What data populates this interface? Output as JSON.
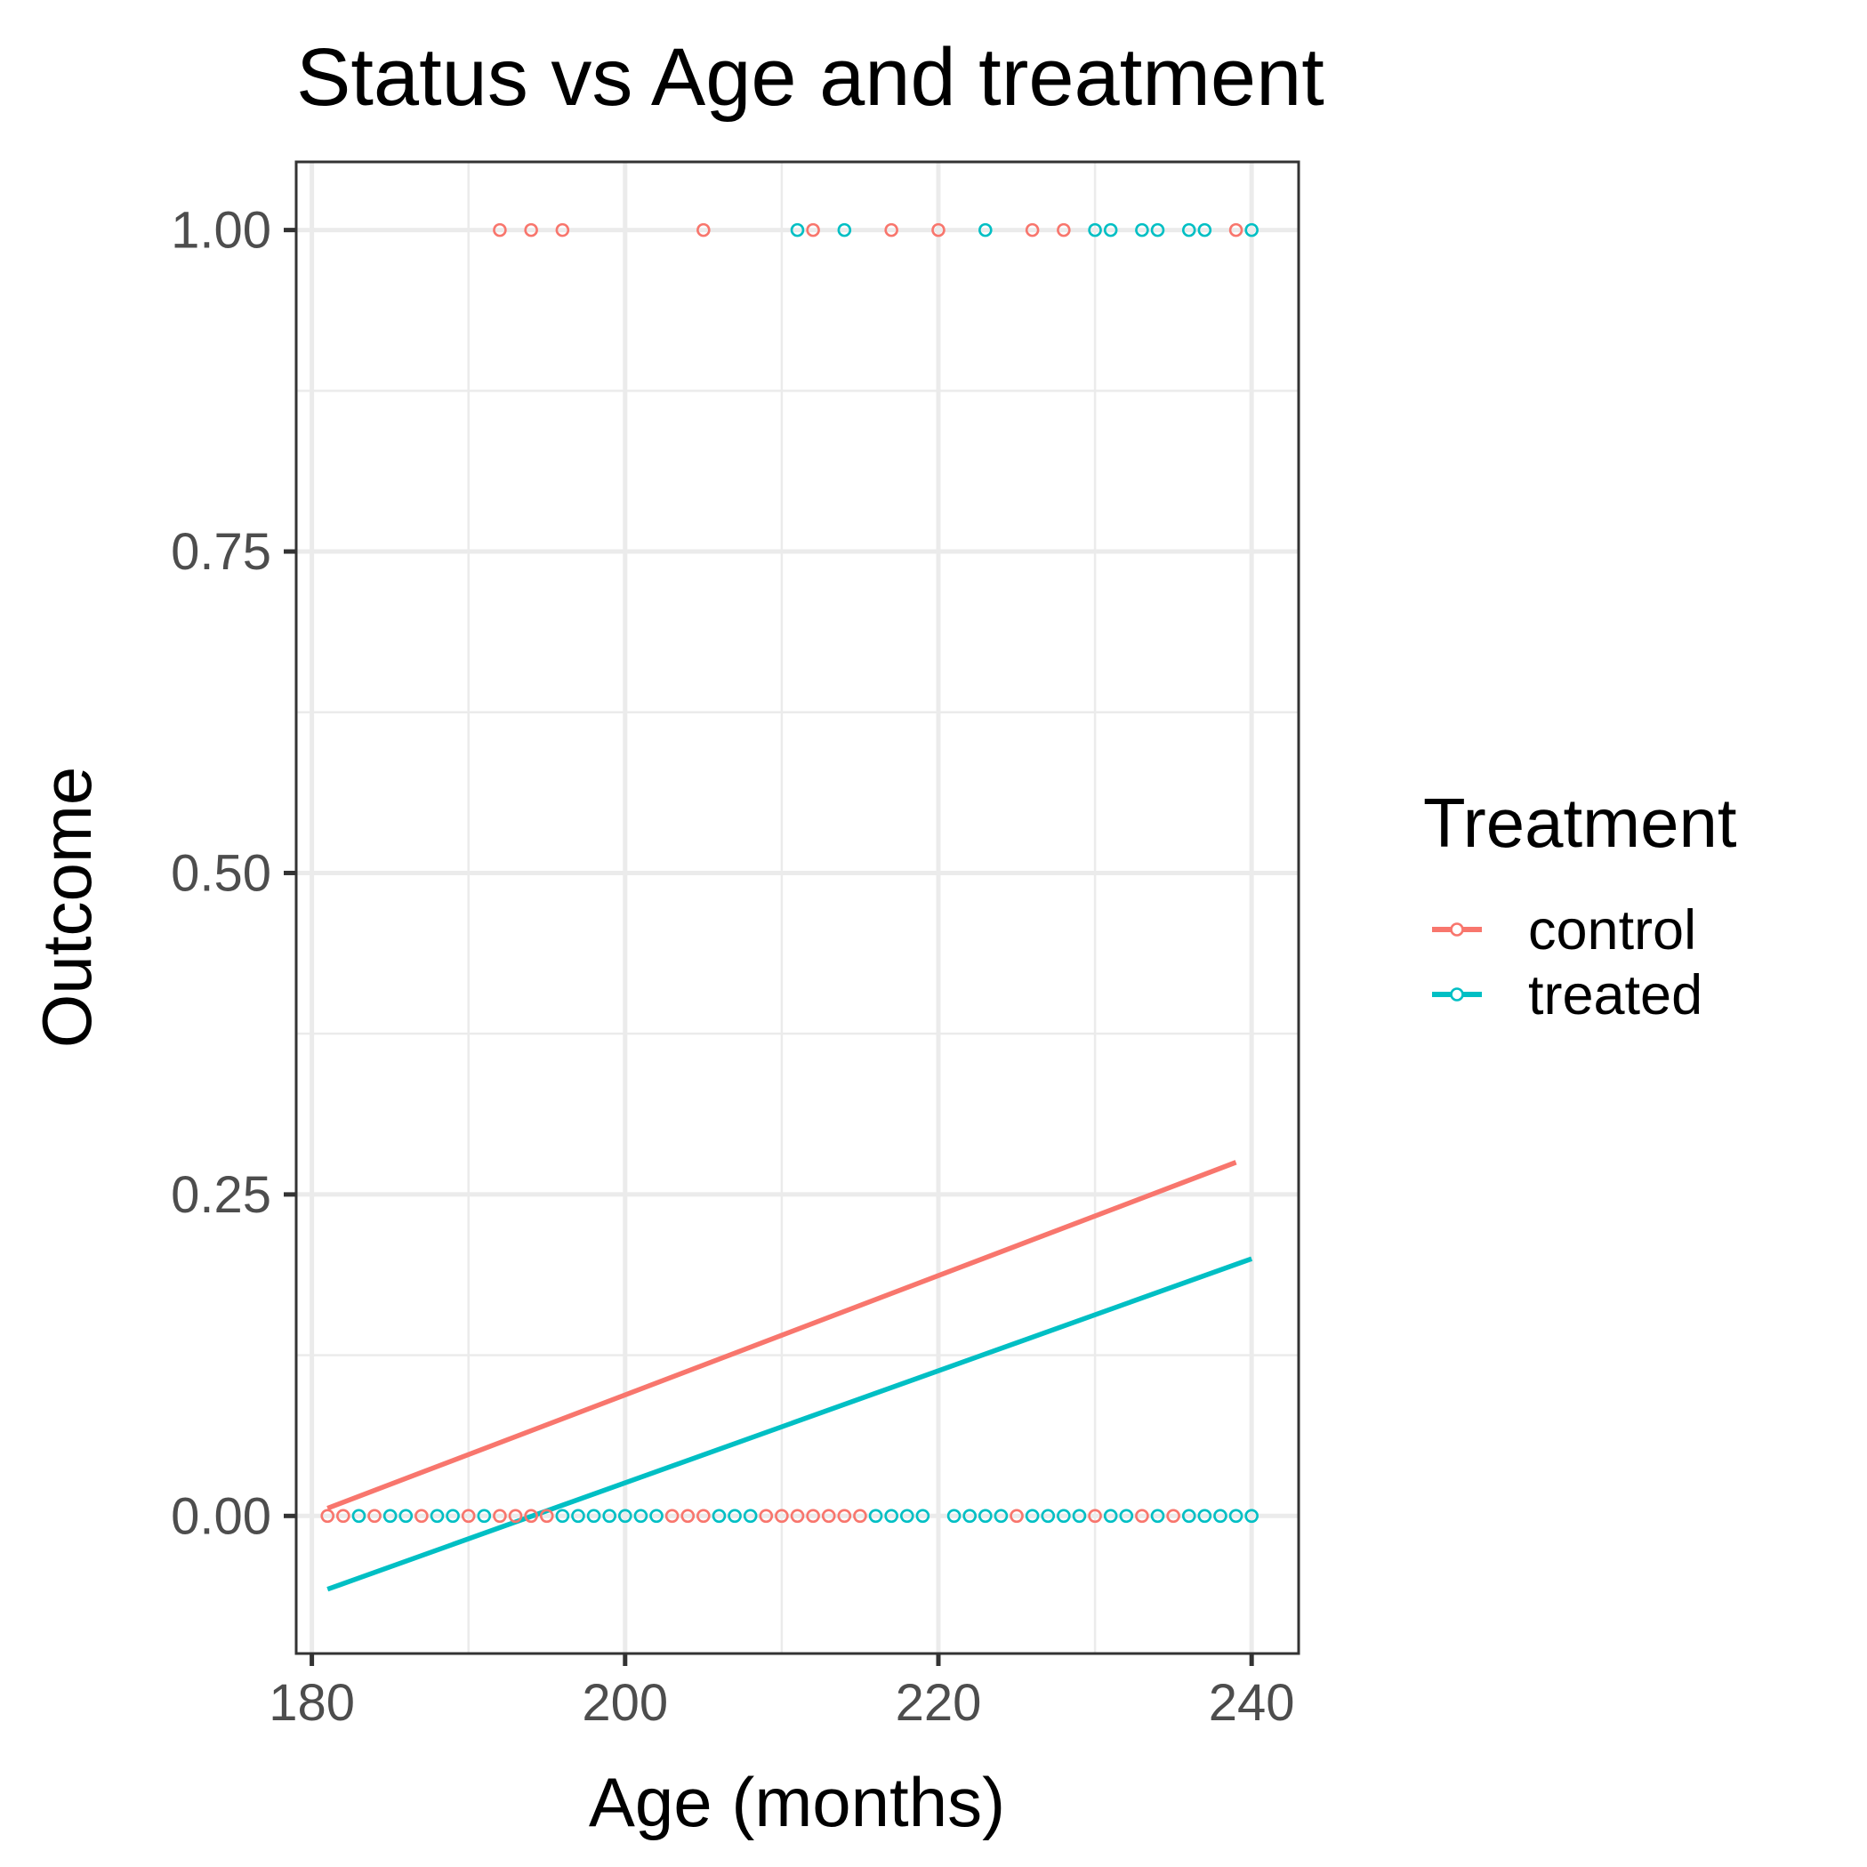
{
  "chart_data": {
    "type": "scatter",
    "title": "Status vs Age and treatment",
    "xlabel": "Age (months)",
    "ylabel": "Outcome",
    "xlim": [
      179,
      243
    ],
    "ylim": [
      -0.107,
      1.053
    ],
    "x_ticks": [
      180,
      200,
      220,
      240
    ],
    "x_tick_labels": [
      "180",
      "200",
      "220",
      "240"
    ],
    "y_ticks": [
      0,
      0.25,
      0.5,
      0.75,
      1.0
    ],
    "y_tick_labels": [
      "0.00",
      "0.25",
      "0.50",
      "0.75",
      "1.00"
    ],
    "grid": true,
    "legend": {
      "title": "Treatment",
      "position": "right",
      "entries": [
        "control",
        "treated"
      ]
    },
    "series": [
      {
        "name": "control",
        "color": "#F8766D",
        "points": [
          [
            192,
            1
          ],
          [
            194,
            1
          ],
          [
            196,
            1
          ],
          [
            205,
            1
          ],
          [
            212,
            1
          ],
          [
            217,
            1
          ],
          [
            220,
            1
          ],
          [
            226,
            1
          ],
          [
            228,
            1
          ],
          [
            239,
            1
          ],
          [
            181,
            0
          ],
          [
            182,
            0
          ],
          [
            184,
            0
          ],
          [
            187,
            0
          ],
          [
            190,
            0
          ],
          [
            192,
            0
          ],
          [
            193,
            0
          ],
          [
            194,
            0
          ],
          [
            195,
            0
          ],
          [
            203,
            0
          ],
          [
            204,
            0
          ],
          [
            205,
            0
          ],
          [
            209,
            0
          ],
          [
            210,
            0
          ],
          [
            211,
            0
          ],
          [
            212,
            0
          ],
          [
            213,
            0
          ],
          [
            214,
            0
          ],
          [
            215,
            0
          ],
          [
            225,
            0
          ],
          [
            230,
            0
          ],
          [
            233,
            0
          ],
          [
            235,
            0
          ]
        ],
        "fit_line": {
          "x": [
            181,
            239
          ],
          "y": [
            0.006,
            0.275
          ]
        }
      },
      {
        "name": "treated",
        "color": "#00BFC4",
        "points": [
          [
            211,
            1
          ],
          [
            214,
            1
          ],
          [
            223,
            1
          ],
          [
            230,
            1
          ],
          [
            231,
            1
          ],
          [
            233,
            1
          ],
          [
            234,
            1
          ],
          [
            236,
            1
          ],
          [
            237,
            1
          ],
          [
            240,
            1
          ],
          [
            183,
            0
          ],
          [
            185,
            0
          ],
          [
            186,
            0
          ],
          [
            188,
            0
          ],
          [
            189,
            0
          ],
          [
            191,
            0
          ],
          [
            196,
            0
          ],
          [
            197,
            0
          ],
          [
            198,
            0
          ],
          [
            199,
            0
          ],
          [
            200,
            0
          ],
          [
            201,
            0
          ],
          [
            202,
            0
          ],
          [
            206,
            0
          ],
          [
            207,
            0
          ],
          [
            208,
            0
          ],
          [
            216,
            0
          ],
          [
            217,
            0
          ],
          [
            218,
            0
          ],
          [
            219,
            0
          ],
          [
            221,
            0
          ],
          [
            222,
            0
          ],
          [
            223,
            0
          ],
          [
            224,
            0
          ],
          [
            226,
            0
          ],
          [
            227,
            0
          ],
          [
            228,
            0
          ],
          [
            229,
            0
          ],
          [
            231,
            0
          ],
          [
            232,
            0
          ],
          [
            234,
            0
          ],
          [
            236,
            0
          ],
          [
            237,
            0
          ],
          [
            238,
            0
          ],
          [
            239,
            0
          ],
          [
            240,
            0
          ]
        ],
        "fit_line": {
          "x": [
            181,
            240
          ],
          "y": [
            -0.057,
            0.2
          ]
        }
      }
    ]
  }
}
